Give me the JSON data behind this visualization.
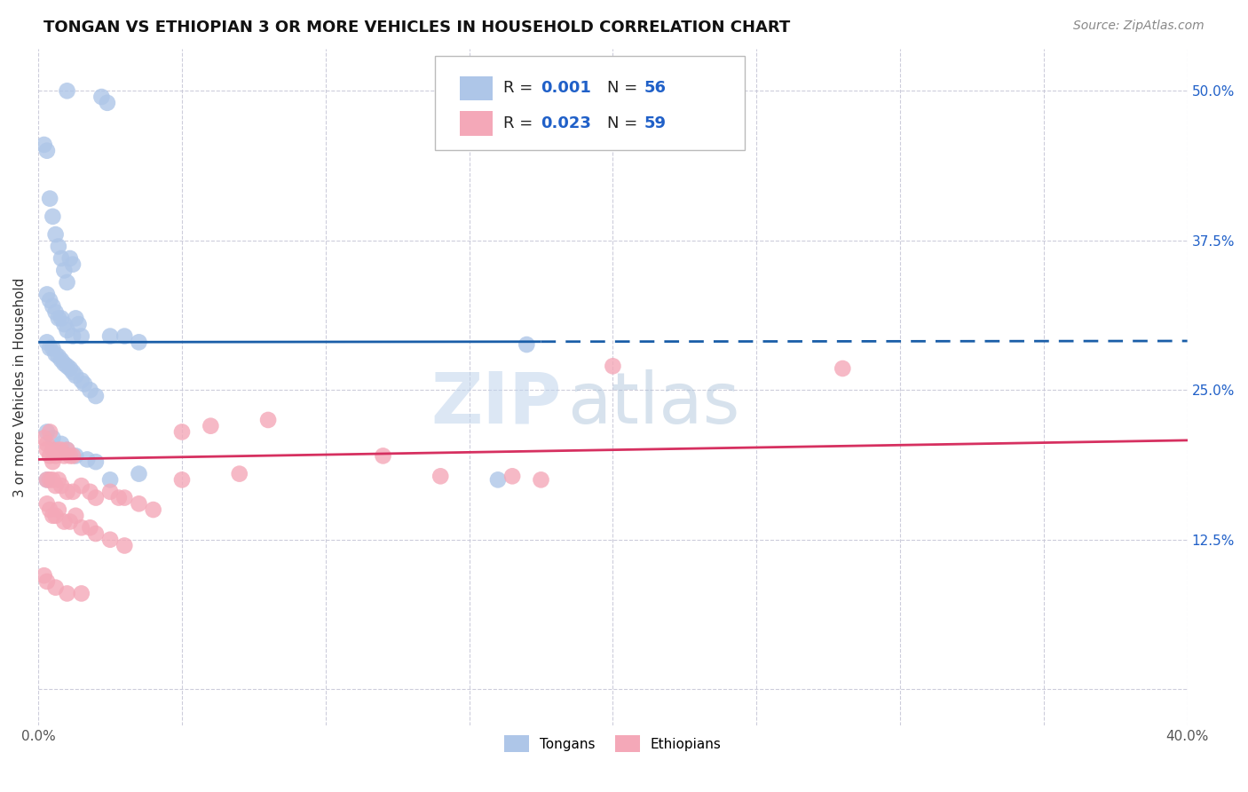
{
  "title": "TONGAN VS ETHIOPIAN 3 OR MORE VEHICLES IN HOUSEHOLD CORRELATION CHART",
  "source": "Source: ZipAtlas.com",
  "ylabel": "3 or more Vehicles in Household",
  "watermark_zip": "ZIP",
  "watermark_atlas": "atlas",
  "xlim": [
    0.0,
    0.4
  ],
  "ylim": [
    -0.03,
    0.535
  ],
  "xtick_positions": [
    0.0,
    0.05,
    0.1,
    0.15,
    0.2,
    0.25,
    0.3,
    0.35,
    0.4
  ],
  "xticklabels": [
    "0.0%",
    "",
    "",
    "",
    "",
    "",
    "",
    "",
    "40.0%"
  ],
  "ytick_positions": [
    0.0,
    0.125,
    0.25,
    0.375,
    0.5
  ],
  "yticklabels_right": [
    "",
    "12.5%",
    "25.0%",
    "37.5%",
    "50.0%"
  ],
  "tongan_color": "#aec6e8",
  "tongan_line_color": "#1a5ea8",
  "ethiopian_color": "#f4a8b8",
  "ethiopian_line_color": "#d63060",
  "tongan_line_y0": 0.29,
  "tongan_line_y1": 0.291,
  "tongan_line_solid_x1": 0.175,
  "ethiopian_line_y0": 0.192,
  "ethiopian_line_y1": 0.208,
  "background_color": "#ffffff",
  "grid_color": "#c8c8d8",
  "right_ytick_color": "#2060c8",
  "legend_r_color": "#2060c8",
  "legend_text_color": "#222222",
  "tongan_x": [
    0.01,
    0.022,
    0.024,
    0.002,
    0.003,
    0.004,
    0.005,
    0.006,
    0.007,
    0.008,
    0.009,
    0.01,
    0.011,
    0.012,
    0.003,
    0.004,
    0.005,
    0.006,
    0.007,
    0.008,
    0.009,
    0.01,
    0.012,
    0.013,
    0.014,
    0.015,
    0.003,
    0.004,
    0.005,
    0.006,
    0.007,
    0.008,
    0.009,
    0.01,
    0.011,
    0.012,
    0.013,
    0.015,
    0.016,
    0.018,
    0.02,
    0.025,
    0.03,
    0.035,
    0.17,
    0.003,
    0.005,
    0.008,
    0.01,
    0.013,
    0.017,
    0.02,
    0.035,
    0.16,
    0.003,
    0.025
  ],
  "tongan_y": [
    0.5,
    0.495,
    0.49,
    0.455,
    0.45,
    0.41,
    0.395,
    0.38,
    0.37,
    0.36,
    0.35,
    0.34,
    0.36,
    0.355,
    0.33,
    0.325,
    0.32,
    0.315,
    0.31,
    0.31,
    0.305,
    0.3,
    0.295,
    0.31,
    0.305,
    0.295,
    0.29,
    0.285,
    0.285,
    0.28,
    0.278,
    0.275,
    0.272,
    0.27,
    0.268,
    0.265,
    0.262,
    0.258,
    0.255,
    0.25,
    0.245,
    0.295,
    0.295,
    0.29,
    0.288,
    0.215,
    0.21,
    0.205,
    0.2,
    0.195,
    0.192,
    0.19,
    0.18,
    0.175,
    0.175,
    0.175
  ],
  "ethiopian_x": [
    0.002,
    0.003,
    0.004,
    0.005,
    0.003,
    0.004,
    0.005,
    0.006,
    0.007,
    0.008,
    0.009,
    0.01,
    0.011,
    0.012,
    0.003,
    0.004,
    0.005,
    0.006,
    0.007,
    0.008,
    0.01,
    0.012,
    0.015,
    0.018,
    0.02,
    0.025,
    0.028,
    0.03,
    0.035,
    0.04,
    0.05,
    0.06,
    0.08,
    0.003,
    0.004,
    0.005,
    0.006,
    0.007,
    0.009,
    0.011,
    0.013,
    0.015,
    0.018,
    0.02,
    0.025,
    0.03,
    0.2,
    0.28,
    0.05,
    0.07,
    0.12,
    0.14,
    0.165,
    0.175,
    0.002,
    0.003,
    0.006,
    0.01,
    0.015
  ],
  "ethiopian_y": [
    0.21,
    0.205,
    0.215,
    0.2,
    0.2,
    0.195,
    0.19,
    0.195,
    0.2,
    0.2,
    0.195,
    0.2,
    0.195,
    0.195,
    0.175,
    0.175,
    0.175,
    0.17,
    0.175,
    0.17,
    0.165,
    0.165,
    0.17,
    0.165,
    0.16,
    0.165,
    0.16,
    0.16,
    0.155,
    0.15,
    0.215,
    0.22,
    0.225,
    0.155,
    0.15,
    0.145,
    0.145,
    0.15,
    0.14,
    0.14,
    0.145,
    0.135,
    0.135,
    0.13,
    0.125,
    0.12,
    0.27,
    0.268,
    0.175,
    0.18,
    0.195,
    0.178,
    0.178,
    0.175,
    0.095,
    0.09,
    0.085,
    0.08,
    0.08
  ]
}
